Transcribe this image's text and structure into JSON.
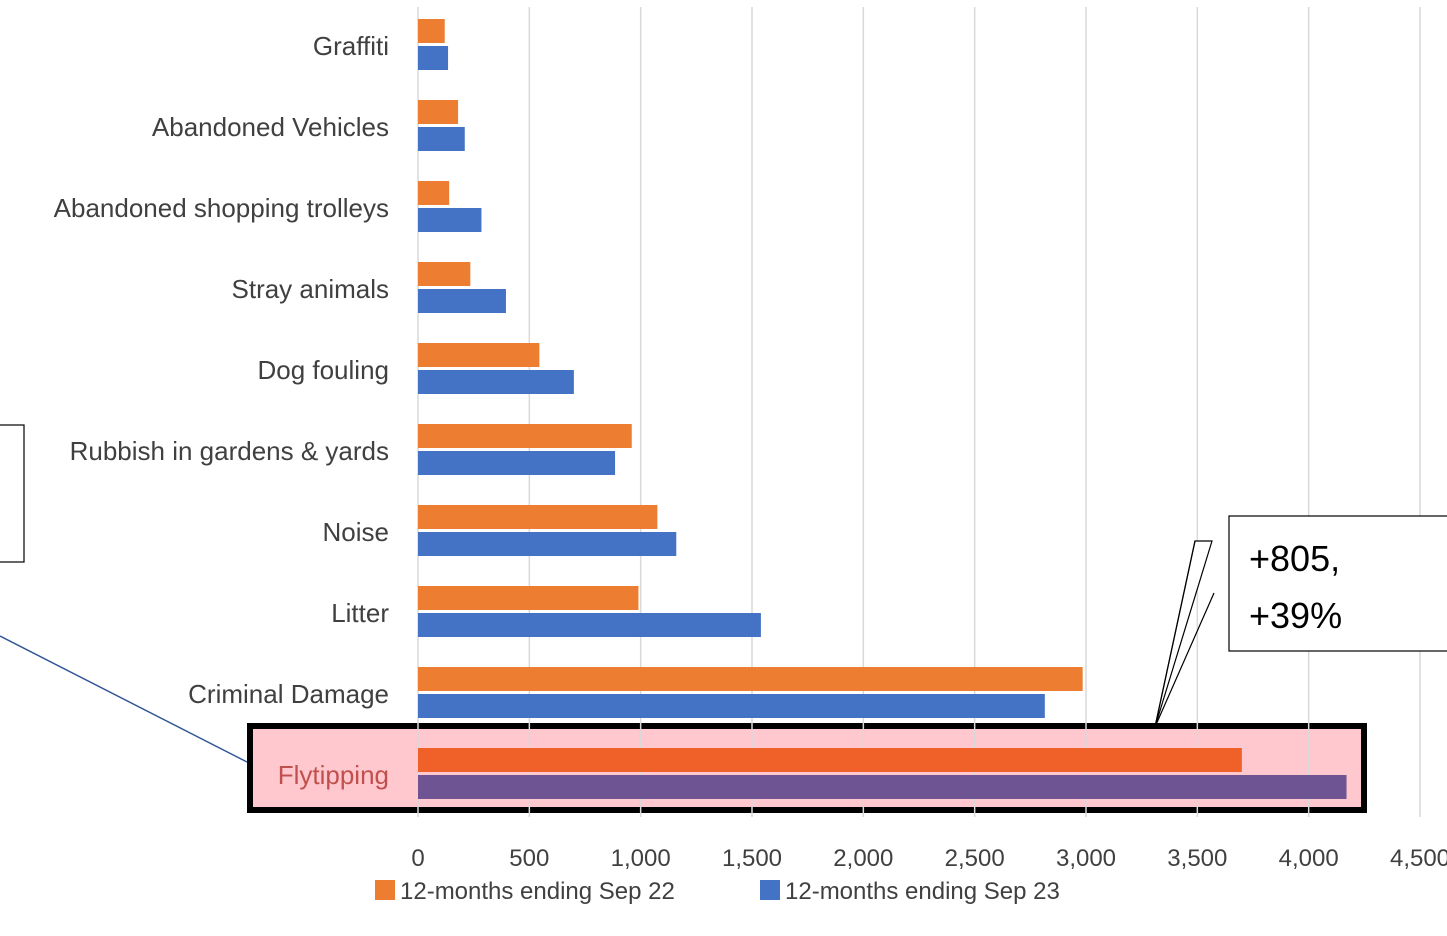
{
  "chart_data": {
    "type": "bar",
    "orientation": "horizontal",
    "categories": [
      "Graffiti",
      "Abandoned Vehicles",
      "Abandoned shopping trolleys",
      "Stray animals",
      "Dog fouling",
      "Rubbish in gardens & yards",
      "Noise",
      "Litter",
      "Criminal Damage",
      "Flytipping"
    ],
    "series": [
      {
        "name": "12-months ending Sep 22",
        "values": [
          120,
          180,
          140,
          235,
          545,
          960,
          1075,
          990,
          2985,
          3700
        ],
        "color": "#ED7D31",
        "highlight_color": "#F0612A"
      },
      {
        "name": "12-months ending Sep 23",
        "values": [
          135,
          210,
          285,
          395,
          700,
          885,
          1160,
          1540,
          2815,
          4170
        ],
        "color": "#4472C4",
        "highlight_color": "#6F5493"
      }
    ],
    "xlim": [
      0,
      4500
    ],
    "xticks": [
      0,
      500,
      1000,
      1500,
      2000,
      2500,
      3000,
      3500,
      4000,
      4500
    ],
    "xtick_labels": [
      "0",
      "500",
      "1,000",
      "1,500",
      "2,000",
      "2,500",
      "3,000",
      "3,500",
      "4,000",
      "4,500"
    ],
    "grid": "vertical",
    "legend": "bottom",
    "highlighted_category": "Flytipping",
    "highlight_fill": "#FFC7CE",
    "annotation": {
      "line1": "+805,",
      "line2": "+39%"
    },
    "title": "",
    "xlabel": "",
    "ylabel": ""
  }
}
